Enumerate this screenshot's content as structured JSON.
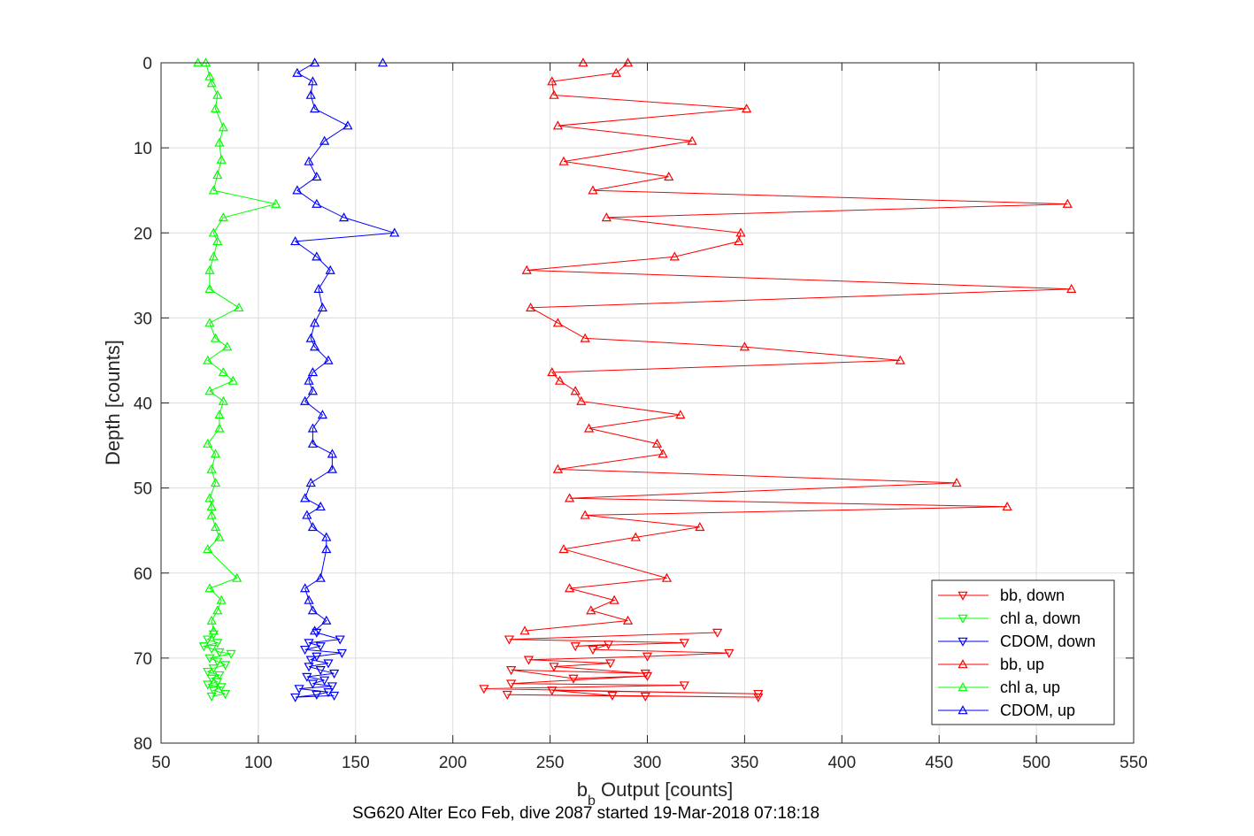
{
  "chart_data": {
    "type": "line",
    "title": "",
    "caption": "SG620 Alter Eco Feb, dive 2087 started 19-Mar-2018 07:18:18",
    "xlabel_main": "b",
    "xlabel_sub": "b",
    "xlabel_rest": " Output [counts]",
    "ylabel": "Depth [counts]",
    "xlim": [
      50,
      550
    ],
    "ylim": [
      0,
      80
    ],
    "y_reversed": true,
    "x_ticks": [
      "50",
      "100",
      "150",
      "200",
      "250",
      "300",
      "350",
      "400",
      "450",
      "500",
      "550"
    ],
    "y_ticks": [
      "0",
      "10",
      "20",
      "30",
      "40",
      "50",
      "60",
      "70",
      "80"
    ],
    "grid": true,
    "legend_position": "lower-right",
    "series": [
      {
        "name": "bb, down",
        "color": "#ff0000",
        "marker": "triangle-down",
        "points": [
          [
            336,
            67.0
          ],
          [
            229,
            67.8
          ],
          [
            319,
            68.2
          ],
          [
            263,
            68.6
          ],
          [
            280,
            68.4
          ],
          [
            272,
            69.0
          ],
          [
            342,
            69.4
          ],
          [
            300,
            69.8
          ],
          [
            239,
            70.2
          ],
          [
            281,
            70.6
          ],
          [
            252,
            71.0
          ],
          [
            299,
            71.8
          ],
          [
            230,
            71.4
          ],
          [
            262,
            72.4
          ],
          [
            300,
            72.1
          ],
          [
            230,
            73.0
          ],
          [
            319,
            73.2
          ],
          [
            216,
            73.6
          ],
          [
            357,
            74.2
          ],
          [
            251,
            73.8
          ],
          [
            282,
            74.4
          ],
          [
            357,
            74.6
          ],
          [
            228,
            74.3
          ],
          [
            299,
            74.5
          ]
        ]
      },
      {
        "name": "chl a, down",
        "color": "#00ff00",
        "marker": "triangle-down",
        "points": [
          [
            77,
            67.2
          ],
          [
            74,
            67.8
          ],
          [
            79,
            68.2
          ],
          [
            72,
            68.6
          ],
          [
            76,
            68.9
          ],
          [
            80,
            69.3
          ],
          [
            86,
            69.5
          ],
          [
            75,
            70.0
          ],
          [
            79,
            70.4
          ],
          [
            83,
            70.8
          ],
          [
            77,
            71.2
          ],
          [
            74,
            71.6
          ],
          [
            80,
            72.0
          ],
          [
            76,
            72.4
          ],
          [
            79,
            72.8
          ],
          [
            74,
            73.1
          ],
          [
            81,
            73.4
          ],
          [
            77,
            73.8
          ],
          [
            83,
            74.2
          ],
          [
            76,
            74.5
          ]
        ]
      },
      {
        "name": "CDOM, down",
        "color": "#0000ff",
        "marker": "triangle-down",
        "points": [
          [
            130,
            67.0
          ],
          [
            142,
            67.8
          ],
          [
            126,
            68.2
          ],
          [
            132,
            68.6
          ],
          [
            124,
            69.0
          ],
          [
            143,
            69.4
          ],
          [
            130,
            69.8
          ],
          [
            127,
            70.2
          ],
          [
            136,
            70.6
          ],
          [
            126,
            71.0
          ],
          [
            132,
            71.4
          ],
          [
            139,
            71.8
          ],
          [
            125,
            72.2
          ],
          [
            134,
            72.6
          ],
          [
            128,
            73.0
          ],
          [
            138,
            73.3
          ],
          [
            121,
            73.6
          ],
          [
            136,
            74.0
          ],
          [
            130,
            74.3
          ],
          [
            119,
            74.6
          ],
          [
            139,
            74.4
          ]
        ]
      },
      {
        "name": "bb, up",
        "color": "#ff0000",
        "marker": "triangle-up",
        "points": [
          [
            267,
            0.0
          ],
          [
            290,
            0.0
          ],
          [
            284,
            1.2
          ],
          [
            251,
            2.2
          ],
          [
            252,
            3.8
          ],
          [
            351,
            5.4
          ],
          [
            254,
            7.4
          ],
          [
            323,
            9.2
          ],
          [
            257,
            11.6
          ],
          [
            311,
            13.4
          ],
          [
            272,
            15.0
          ],
          [
            516,
            16.6
          ],
          [
            279,
            18.2
          ],
          [
            348,
            20.0
          ],
          [
            347,
            21.0
          ],
          [
            314,
            22.8
          ],
          [
            238,
            24.4
          ],
          [
            518,
            26.6
          ],
          [
            240,
            28.8
          ],
          [
            254,
            30.6
          ],
          [
            268,
            32.4
          ],
          [
            350,
            33.4
          ],
          [
            430,
            35.0
          ],
          [
            251,
            36.4
          ],
          [
            255,
            37.4
          ],
          [
            263,
            38.6
          ],
          [
            266,
            39.8
          ],
          [
            317,
            41.4
          ],
          [
            270,
            43.0
          ],
          [
            305,
            44.8
          ],
          [
            308,
            46.0
          ],
          [
            254,
            47.8
          ],
          [
            459,
            49.4
          ],
          [
            260,
            51.2
          ],
          [
            485,
            52.2
          ],
          [
            268,
            53.2
          ],
          [
            327,
            54.6
          ],
          [
            294,
            55.8
          ],
          [
            257,
            57.2
          ],
          [
            310,
            60.6
          ],
          [
            260,
            61.8
          ],
          [
            283,
            63.2
          ],
          [
            271,
            64.4
          ],
          [
            290,
            65.6
          ],
          [
            237,
            66.8
          ]
        ]
      },
      {
        "name": "chl a, up",
        "color": "#00ff00",
        "marker": "triangle-up",
        "points": [
          [
            69,
            0.0
          ],
          [
            73,
            0.0
          ],
          [
            75,
            1.6
          ],
          [
            76,
            2.4
          ],
          [
            79,
            3.8
          ],
          [
            78,
            5.4
          ],
          [
            82,
            7.6
          ],
          [
            80,
            9.4
          ],
          [
            81,
            11.4
          ],
          [
            79,
            13.2
          ],
          [
            77,
            15.0
          ],
          [
            109,
            16.6
          ],
          [
            82,
            18.2
          ],
          [
            77,
            20.0
          ],
          [
            79,
            21.0
          ],
          [
            77,
            22.8
          ],
          [
            75,
            24.4
          ],
          [
            75,
            26.6
          ],
          [
            90,
            28.8
          ],
          [
            75,
            30.6
          ],
          [
            78,
            32.4
          ],
          [
            84,
            33.4
          ],
          [
            74,
            35.0
          ],
          [
            82,
            36.4
          ],
          [
            87,
            37.4
          ],
          [
            75,
            38.6
          ],
          [
            82,
            39.8
          ],
          [
            80,
            41.4
          ],
          [
            80,
            43.0
          ],
          [
            74,
            44.8
          ],
          [
            78,
            46.0
          ],
          [
            76,
            47.8
          ],
          [
            78,
            49.4
          ],
          [
            75,
            51.2
          ],
          [
            76,
            52.2
          ],
          [
            76,
            53.2
          ],
          [
            78,
            54.6
          ],
          [
            80,
            55.8
          ],
          [
            74,
            57.2
          ],
          [
            89,
            60.6
          ],
          [
            75,
            61.8
          ],
          [
            81,
            63.2
          ],
          [
            79,
            64.4
          ],
          [
            76,
            65.6
          ],
          [
            77,
            66.8
          ]
        ]
      },
      {
        "name": "CDOM, up",
        "color": "#0000ff",
        "marker": "triangle-up",
        "points": [
          [
            164,
            0.0
          ],
          [
            129,
            0.0
          ],
          [
            120,
            1.2
          ],
          [
            128,
            2.2
          ],
          [
            127,
            3.8
          ],
          [
            129,
            5.4
          ],
          [
            146,
            7.4
          ],
          [
            134,
            9.2
          ],
          [
            126,
            11.6
          ],
          [
            130,
            13.4
          ],
          [
            120,
            15.0
          ],
          [
            130,
            16.6
          ],
          [
            144,
            18.2
          ],
          [
            170,
            20.0
          ],
          [
            119,
            21.0
          ],
          [
            130,
            22.8
          ],
          [
            137,
            24.4
          ],
          [
            131,
            26.6
          ],
          [
            133,
            28.8
          ],
          [
            129,
            30.6
          ],
          [
            127,
            32.4
          ],
          [
            129,
            33.4
          ],
          [
            136,
            35.0
          ],
          [
            128,
            36.4
          ],
          [
            126,
            37.4
          ],
          [
            128,
            38.6
          ],
          [
            124,
            39.8
          ],
          [
            133,
            41.4
          ],
          [
            128,
            43.0
          ],
          [
            128,
            44.8
          ],
          [
            138,
            46.0
          ],
          [
            138,
            47.8
          ],
          [
            127,
            49.4
          ],
          [
            124,
            51.2
          ],
          [
            132,
            52.2
          ],
          [
            125,
            53.2
          ],
          [
            128,
            54.6
          ],
          [
            135,
            55.8
          ],
          [
            135,
            57.2
          ],
          [
            132,
            60.6
          ],
          [
            124,
            61.8
          ],
          [
            126,
            63.2
          ],
          [
            128,
            64.4
          ],
          [
            135,
            65.6
          ],
          [
            129,
            66.8
          ]
        ]
      }
    ]
  }
}
